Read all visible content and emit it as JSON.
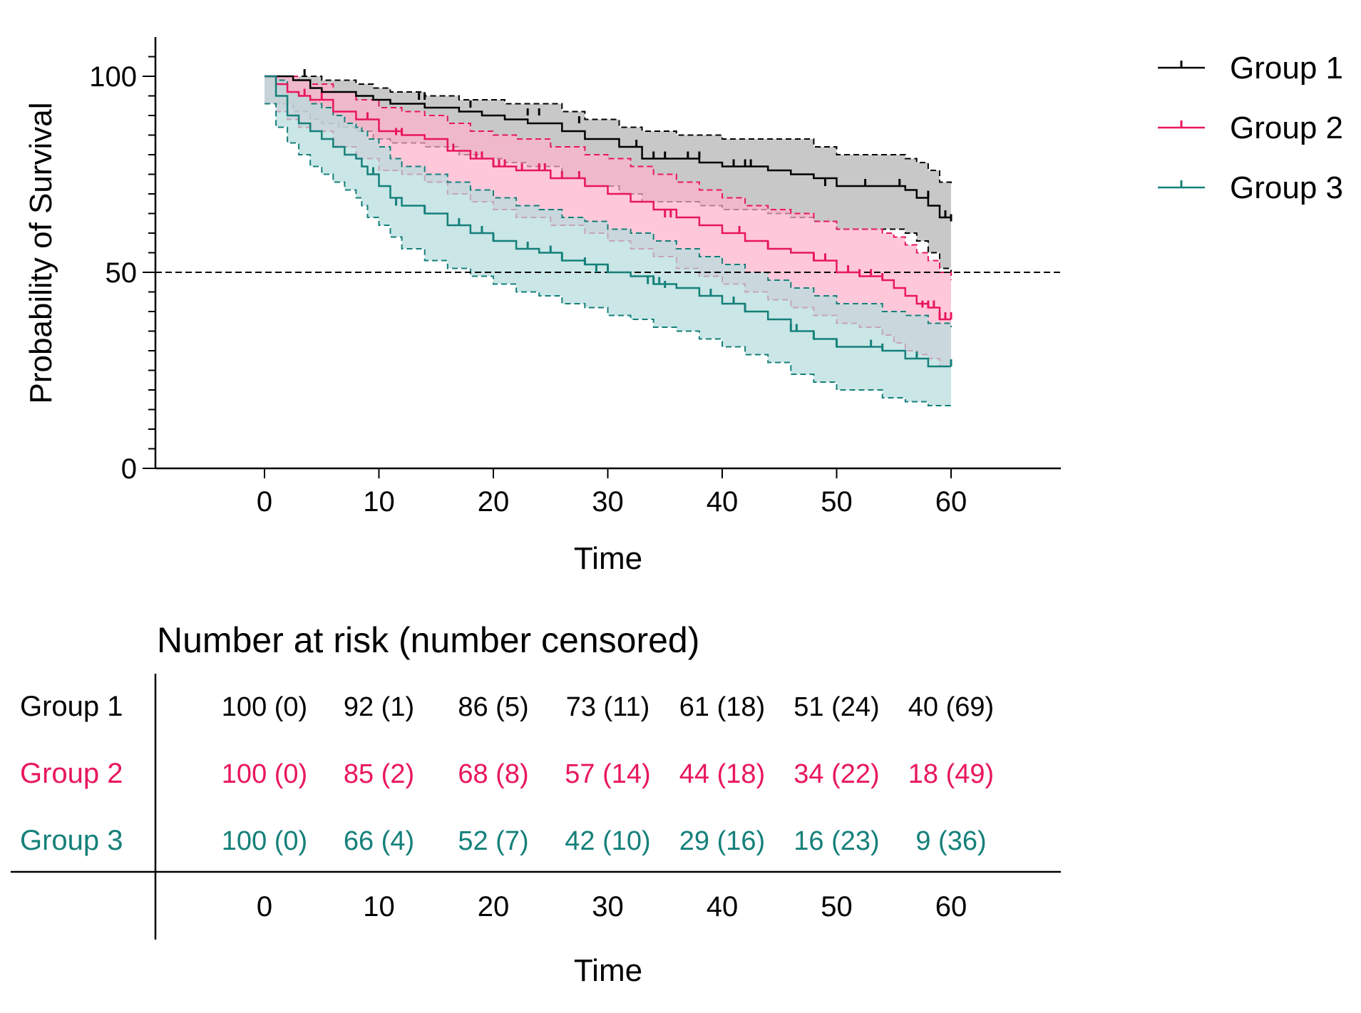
{
  "chart_data": [
    {
      "type": "line",
      "subtype": "kaplan-meier",
      "ylabel": "Probability of Survival",
      "xlabel": "Time",
      "xlim": [
        -10,
        70
      ],
      "ylim": [
        0,
        110
      ],
      "xticks": [
        0,
        10,
        20,
        30,
        40,
        50,
        60
      ],
      "yticks": [
        0,
        50,
        100
      ],
      "reference_line": {
        "y": 50,
        "style": "dashed"
      },
      "legend_position": "top-right",
      "series": [
        {
          "name": "Group 1",
          "color": "#000000",
          "band_color": "#b3b3b3",
          "x": [
            0,
            2.5,
            4,
            5,
            6.5,
            8,
            9.5,
            11,
            14,
            17,
            19,
            21,
            23,
            26,
            28,
            31,
            33,
            36,
            38,
            40,
            42,
            44,
            46,
            48,
            50,
            52,
            54,
            55,
            56,
            57,
            58,
            59,
            60
          ],
          "y": [
            100,
            99,
            97,
            96,
            96,
            95,
            94,
            93,
            92,
            91,
            90,
            89,
            88,
            86,
            84,
            82,
            79,
            79,
            78,
            77,
            77,
            76,
            75,
            74,
            72,
            72,
            72,
            72,
            71,
            69,
            67,
            64,
            63
          ],
          "lower": [
            93,
            91,
            89,
            88,
            87,
            86,
            84,
            83,
            82,
            80,
            79,
            78,
            77,
            74,
            72,
            70,
            68,
            68,
            67,
            66,
            66,
            65,
            64,
            63,
            61,
            61,
            61,
            61,
            60,
            58,
            55,
            51,
            50
          ],
          "upper": [
            100,
            100,
            100,
            99,
            99,
            98,
            97,
            96,
            95,
            94,
            94,
            93,
            93,
            91,
            89,
            87,
            86,
            85,
            85,
            84,
            84,
            84,
            84,
            82,
            80,
            80,
            80,
            80,
            79,
            78,
            76,
            73,
            72
          ],
          "censor_x": [
            3.5,
            13.5,
            14,
            18,
            23,
            24,
            27.5,
            32.5,
            34,
            35,
            37,
            38,
            41,
            42,
            42.5,
            49,
            52.5,
            55.5,
            58,
            59.5,
            60
          ],
          "censor_y": [
            100,
            94,
            94,
            92,
            90,
            90,
            88,
            82,
            79,
            79,
            79,
            79,
            77,
            77,
            77,
            72,
            72,
            72,
            69,
            64,
            63
          ]
        },
        {
          "name": "Group 2",
          "color": "#e8175d",
          "band_color": "#ffb3cc",
          "x": [
            0,
            1,
            2,
            3,
            4,
            6,
            8,
            10,
            12,
            14,
            16,
            18,
            20,
            22,
            25,
            28,
            30,
            32,
            34,
            36,
            38,
            40,
            42,
            44,
            46,
            48,
            50,
            52,
            54,
            55,
            56,
            57,
            58,
            59,
            60
          ],
          "y": [
            100,
            98,
            96,
            95,
            94,
            91,
            89,
            86,
            85,
            84,
            81,
            79,
            77,
            76,
            74,
            72,
            70,
            68,
            66,
            64,
            62,
            60,
            58,
            56,
            55,
            53,
            50,
            49,
            48,
            46,
            44,
            42,
            41,
            38,
            38
          ],
          "lower": [
            93,
            91,
            89,
            87,
            86,
            82,
            79,
            76,
            75,
            73,
            70,
            68,
            66,
            64,
            62,
            60,
            58,
            56,
            54,
            51,
            49,
            47,
            45,
            43,
            41,
            39,
            37,
            36,
            34,
            32,
            30,
            29,
            28,
            26,
            26
          ],
          "upper": [
            100,
            100,
            100,
            99,
            98,
            96,
            94,
            92,
            91,
            90,
            88,
            86,
            85,
            84,
            82,
            80,
            79,
            77,
            75,
            73,
            71,
            69,
            67,
            66,
            65,
            63,
            61,
            61,
            60,
            59,
            57,
            55,
            53,
            50,
            48
          ],
          "censor_x": [
            3.5,
            5,
            9,
            11.5,
            12,
            16.5,
            18.5,
            19,
            20,
            20.5,
            21,
            22.5,
            24,
            24.5,
            26,
            27.5,
            35,
            35.5,
            41.5,
            44,
            48,
            49,
            51,
            52,
            53,
            54,
            57.5,
            58,
            58.5,
            59,
            59.5,
            60
          ],
          "censor_y": [
            95,
            94,
            89,
            85,
            85,
            81,
            79,
            79,
            77,
            77,
            77,
            76,
            76,
            76,
            74,
            74,
            64,
            64,
            60,
            56,
            53,
            53,
            50,
            49,
            49,
            48,
            41,
            41,
            41,
            38,
            38,
            38
          ]
        },
        {
          "name": "Group 3",
          "color": "#15807a",
          "band_color": "#b5dcdc",
          "x": [
            0,
            1,
            2,
            3,
            4,
            5,
            6,
            7,
            8,
            8.5,
            9,
            10,
            11,
            12,
            14,
            16,
            18,
            20,
            22,
            24,
            26,
            28,
            30,
            32,
            34,
            36,
            38,
            40,
            42,
            44,
            46,
            48,
            50,
            52,
            54,
            56,
            58,
            60
          ],
          "y": [
            100,
            95,
            90,
            88,
            86,
            84,
            82,
            80,
            79,
            77,
            75,
            72,
            69,
            67,
            65,
            62,
            60,
            58,
            56,
            55,
            53,
            52,
            50,
            49,
            47,
            46,
            44,
            42,
            40,
            38,
            35,
            33,
            31,
            31,
            30,
            28,
            26,
            26
          ],
          "lower": [
            93,
            87,
            83,
            80,
            77,
            75,
            73,
            71,
            69,
            67,
            64,
            62,
            59,
            56,
            53,
            51,
            49,
            47,
            45,
            44,
            42,
            41,
            39,
            38,
            36,
            35,
            33,
            31,
            29,
            27,
            24,
            22,
            20,
            20,
            18,
            17,
            16,
            16
          ],
          "upper": [
            100,
            99,
            96,
            95,
            93,
            92,
            90,
            88,
            87,
            86,
            84,
            82,
            79,
            77,
            75,
            73,
            71,
            69,
            67,
            66,
            64,
            63,
            61,
            60,
            58,
            56,
            54,
            52,
            50,
            48,
            46,
            44,
            42,
            42,
            40,
            39,
            37,
            36
          ],
          "censor_x": [
            9.5,
            11.5,
            14,
            17,
            19,
            20,
            23,
            25,
            26,
            28,
            29,
            30,
            33.5,
            34,
            34.5,
            35,
            39,
            41,
            42,
            46,
            46.5,
            48,
            50,
            53,
            54,
            57,
            60
          ],
          "censor_y": [
            75,
            67,
            65,
            62,
            60,
            58,
            56,
            55,
            53,
            52,
            50,
            50,
            47,
            47,
            47,
            46,
            44,
            42,
            40,
            35,
            35,
            33,
            31,
            31,
            30,
            28,
            26
          ]
        }
      ]
    },
    {
      "type": "table",
      "title": "Number at risk (number censored)",
      "xlabel": "Time",
      "columns": [
        "0",
        "10",
        "20",
        "30",
        "40",
        "50",
        "60"
      ],
      "rows": [
        {
          "label": "Group 1",
          "color": "#000000",
          "cells": [
            "100 (0)",
            "92 (1)",
            "86 (5)",
            "73 (11)",
            "61 (18)",
            "51 (24)",
            "40 (69)"
          ]
        },
        {
          "label": "Group 2",
          "color": "#e8175d",
          "cells": [
            "100 (0)",
            "85 (2)",
            "68 (8)",
            "57 (14)",
            "44 (18)",
            "34 (22)",
            "18 (49)"
          ]
        },
        {
          "label": "Group 3",
          "color": "#15807a",
          "cells": [
            "100 (0)",
            "66 (4)",
            "52 (7)",
            "42 (10)",
            "29 (16)",
            "16 (23)",
            "9 (36)"
          ]
        }
      ]
    }
  ]
}
